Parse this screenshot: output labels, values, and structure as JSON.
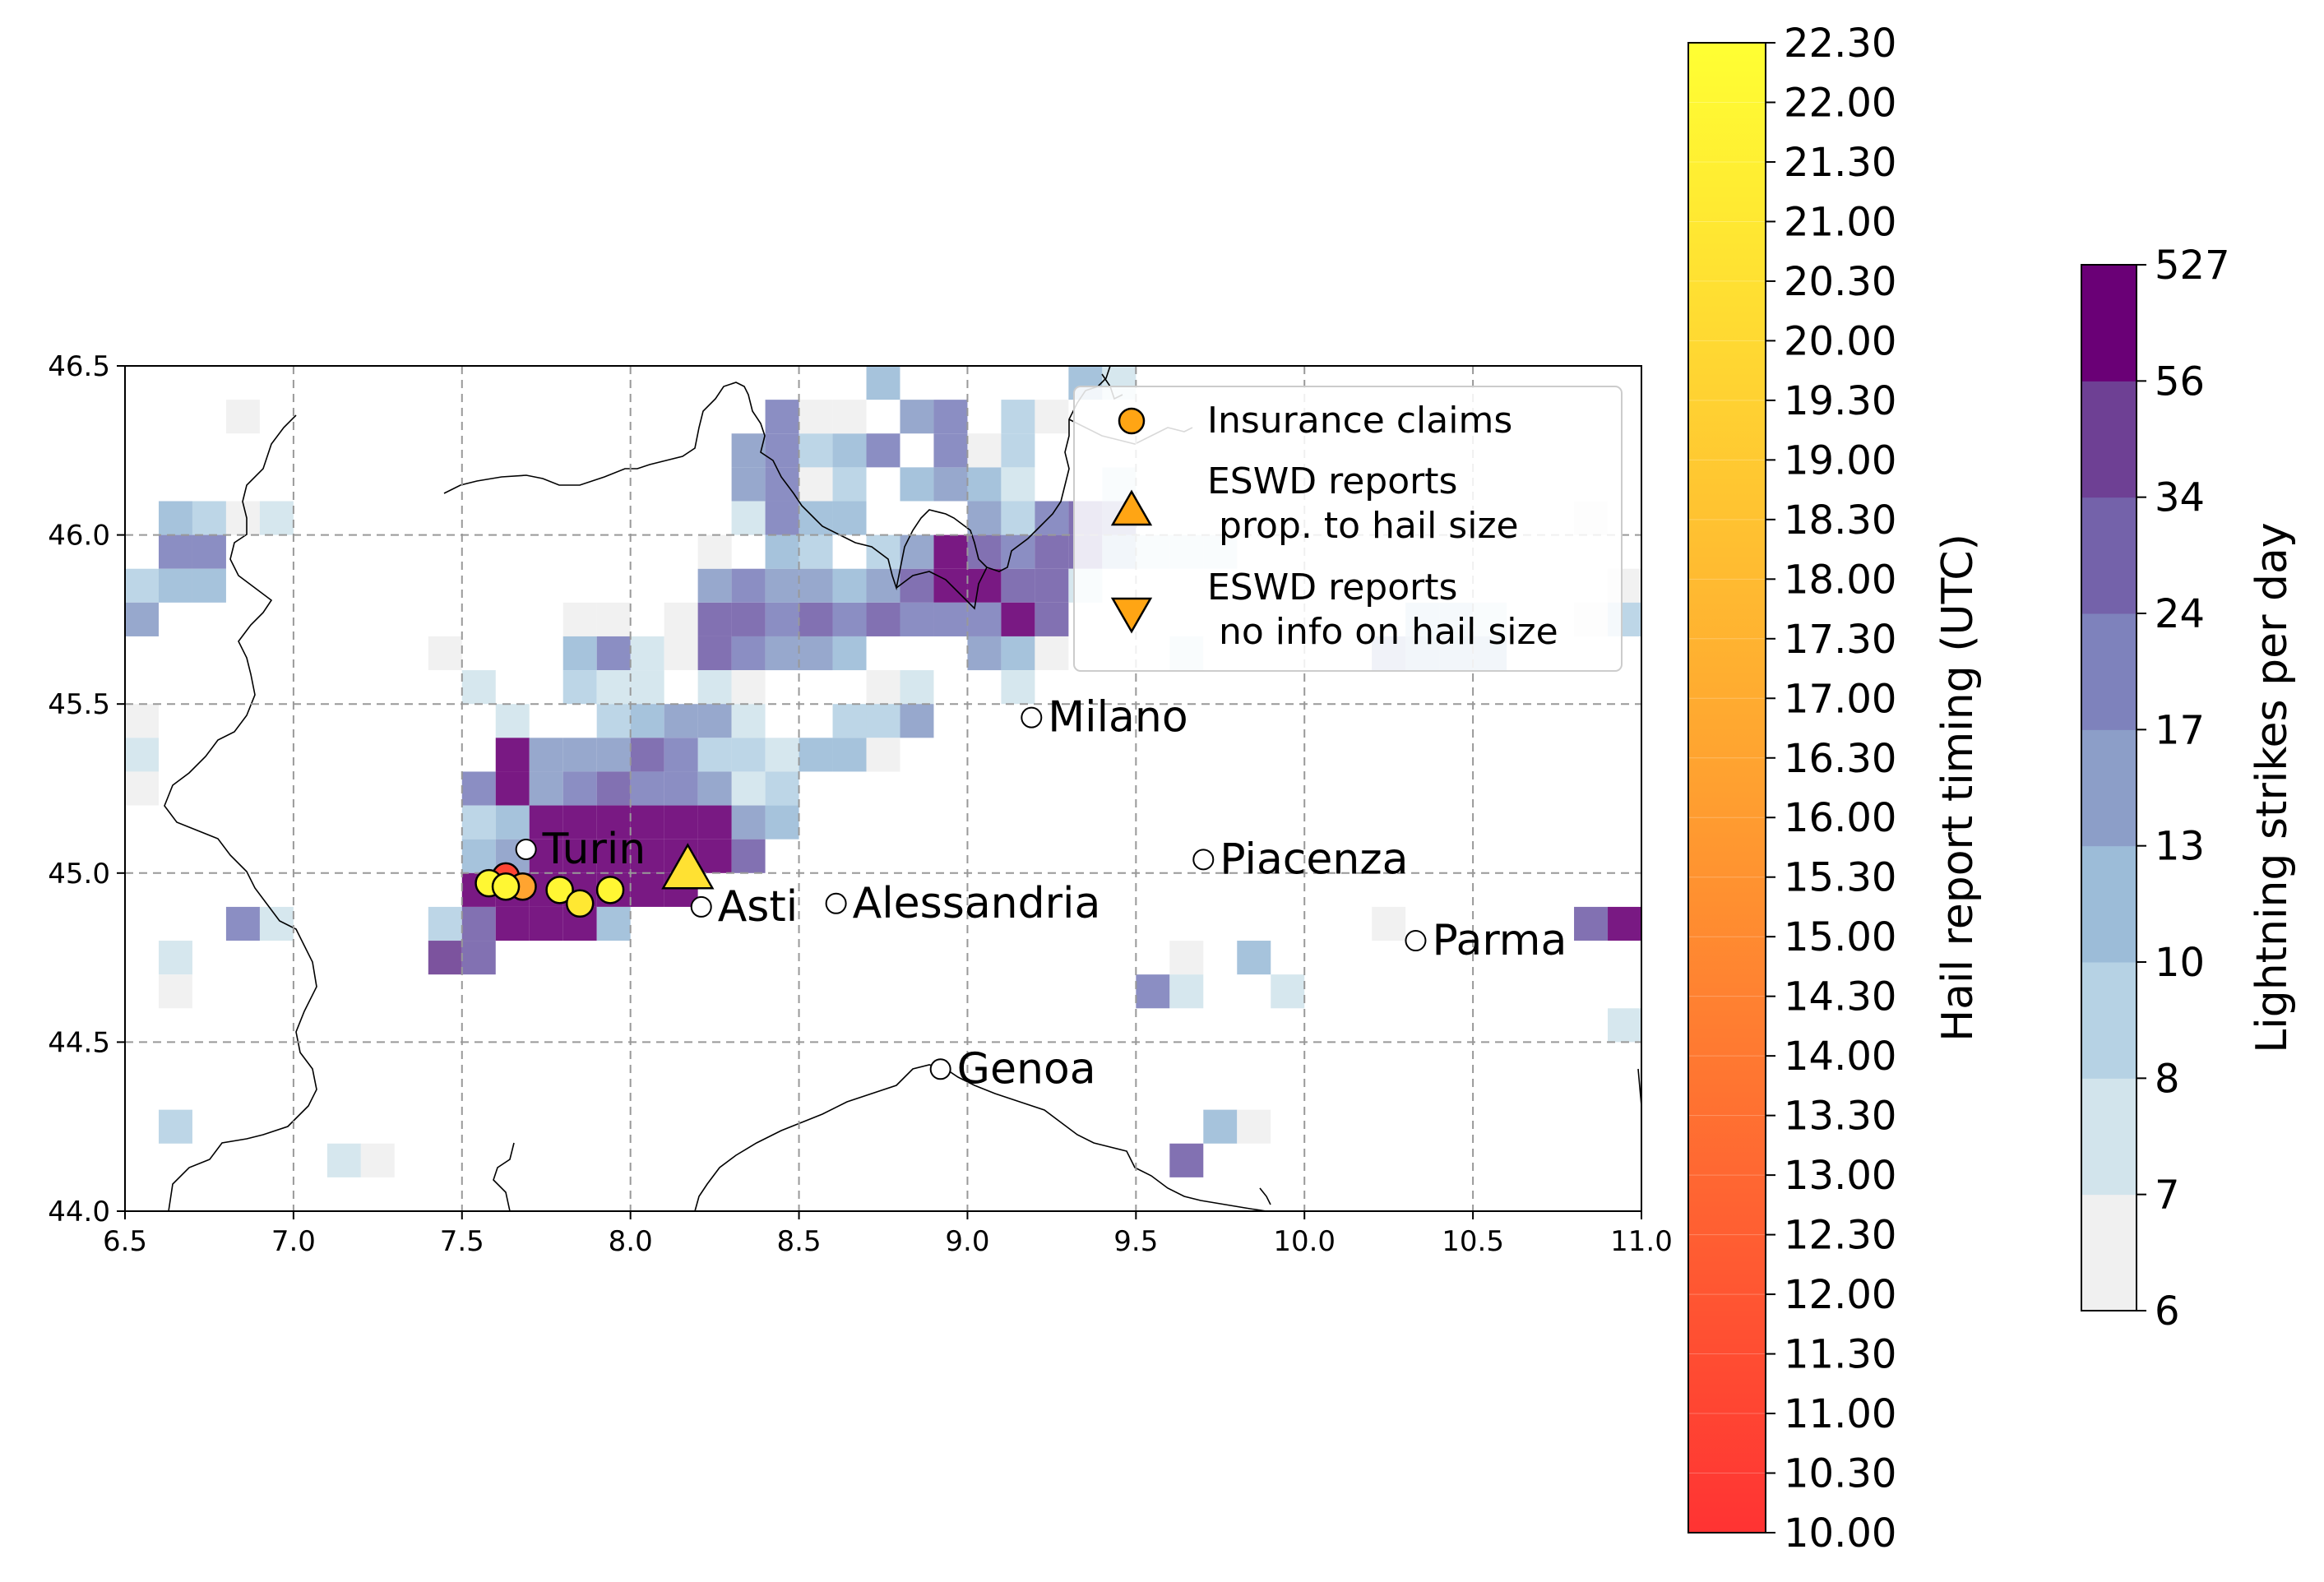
{
  "map": {
    "x_range": [
      6.5,
      11.0
    ],
    "y_range": [
      44.0,
      46.5
    ],
    "x_ticks": [
      "6.5",
      "7.0",
      "7.5",
      "8.0",
      "8.5",
      "9.0",
      "9.5",
      "10.0",
      "10.5",
      "11.0"
    ],
    "y_ticks": [
      "44.0",
      "44.5",
      "45.0",
      "45.5",
      "46.0",
      "46.5"
    ],
    "grid": true,
    "cell_size_deg": 0.1
  },
  "cities": [
    {
      "name": "Turin",
      "lon": 7.69,
      "lat": 45.07
    },
    {
      "name": "Asti",
      "lon": 8.21,
      "lat": 44.9
    },
    {
      "name": "Alessandria",
      "lon": 8.61,
      "lat": 44.91
    },
    {
      "name": "Milano",
      "lon": 9.19,
      "lat": 45.46
    },
    {
      "name": "Piacenza",
      "lon": 9.7,
      "lat": 45.04
    },
    {
      "name": "Parma",
      "lon": 10.33,
      "lat": 44.8
    },
    {
      "name": "Genoa",
      "lon": 8.92,
      "lat": 44.42
    }
  ],
  "insurance_claims": [
    {
      "lon": 7.63,
      "lat": 44.99,
      "time": 11.0
    },
    {
      "lon": 7.68,
      "lat": 44.96,
      "time": 16.3
    },
    {
      "lon": 7.58,
      "lat": 44.97,
      "time": 22.0
    },
    {
      "lon": 7.63,
      "lat": 44.96,
      "time": 22.0
    },
    {
      "lon": 7.79,
      "lat": 44.95,
      "time": 22.0
    },
    {
      "lon": 7.85,
      "lat": 44.91,
      "time": 21.0
    },
    {
      "lon": 7.94,
      "lat": 44.95,
      "time": 22.0
    }
  ],
  "eswd_reports": [
    {
      "lon": 8.17,
      "lat": 45.01,
      "time": 20.3,
      "type": "prop_to_hail_size"
    }
  ],
  "legend": {
    "placement": "top-right",
    "entries": [
      {
        "marker": "circle",
        "label": "Insurance claims"
      },
      {
        "marker": "triangle-up",
        "label": "ESWD reports\n prop. to hail size"
      },
      {
        "marker": "triangle-down",
        "label": "ESWD reports\n no info on hail size"
      }
    ],
    "marker_color": "#ffa514"
  },
  "timing_colorbar": {
    "label": "Hail report timing (UTC)",
    "ticks": [
      "10.00",
      "10.30",
      "11.00",
      "11.30",
      "12.00",
      "12.30",
      "13.00",
      "13.30",
      "14.00",
      "14.30",
      "15.00",
      "15.30",
      "16.00",
      "16.30",
      "17.00",
      "17.30",
      "18.00",
      "18.30",
      "19.00",
      "19.30",
      "20.00",
      "20.30",
      "21.00",
      "21.30",
      "22.00",
      "22.30"
    ],
    "color_low": "#ff3333",
    "color_mid": "#ffa030",
    "color_high": "#ffff33"
  },
  "lightning_colorbar": {
    "label": "Lightning strikes per day",
    "ticks": [
      "6",
      "7",
      "8",
      "10",
      "13",
      "17",
      "24",
      "34",
      "56",
      "527"
    ],
    "colors": [
      "#f0f0f0",
      "#d2e4ec",
      "#b6d2e4",
      "#9cbcd8",
      "#8c9ec8",
      "#7e82bc",
      "#7462aa",
      "#6e4094",
      "#6a0076"
    ]
  },
  "lightning_cells": [
    {
      "lon": 6.85,
      "lat": 46.35,
      "level": 0
    },
    {
      "lon": 6.65,
      "lat": 46.05,
      "level": 3
    },
    {
      "lon": 6.75,
      "lat": 46.05,
      "level": 2
    },
    {
      "lon": 6.85,
      "lat": 46.05,
      "level": 0
    },
    {
      "lon": 6.95,
      "lat": 46.05,
      "level": 1
    },
    {
      "lon": 6.65,
      "lat": 45.95,
      "level": 5
    },
    {
      "lon": 6.75,
      "lat": 45.95,
      "level": 5
    },
    {
      "lon": 6.55,
      "lat": 45.85,
      "level": 2
    },
    {
      "lon": 6.65,
      "lat": 45.85,
      "level": 3
    },
    {
      "lon": 6.75,
      "lat": 45.85,
      "level": 3
    },
    {
      "lon": 6.55,
      "lat": 45.75,
      "level": 4
    },
    {
      "lon": 6.55,
      "lat": 45.45,
      "level": 0
    },
    {
      "lon": 6.55,
      "lat": 45.35,
      "level": 1
    },
    {
      "lon": 6.55,
      "lat": 45.25,
      "level": 0
    },
    {
      "lon": 6.95,
      "lat": 44.85,
      "level": 1
    },
    {
      "lon": 6.85,
      "lat": 44.85,
      "level": 5
    },
    {
      "lon": 6.65,
      "lat": 44.75,
      "level": 1
    },
    {
      "lon": 6.65,
      "lat": 44.65,
      "level": 0
    },
    {
      "lon": 6.65,
      "lat": 44.25,
      "level": 2
    },
    {
      "lon": 7.15,
      "lat": 44.15,
      "level": 1
    },
    {
      "lon": 7.25,
      "lat": 44.15,
      "level": 0
    },
    {
      "lon": 7.45,
      "lat": 45.65,
      "level": 0
    },
    {
      "lon": 7.55,
      "lat": 45.55,
      "level": 1
    },
    {
      "lon": 7.65,
      "lat": 45.45,
      "level": 1
    },
    {
      "lon": 7.85,
      "lat": 45.75,
      "level": 0
    },
    {
      "lon": 7.95,
      "lat": 45.75,
      "level": 0
    },
    {
      "lon": 7.85,
      "lat": 45.65,
      "level": 3
    },
    {
      "lon": 7.95,
      "lat": 45.65,
      "level": 5
    },
    {
      "lon": 8.05,
      "lat": 45.65,
      "level": 1
    },
    {
      "lon": 7.85,
      "lat": 45.55,
      "level": 2
    },
    {
      "lon": 7.95,
      "lat": 45.55,
      "level": 1
    },
    {
      "lon": 8.05,
      "lat": 45.55,
      "level": 1
    },
    {
      "lon": 7.95,
      "lat": 45.45,
      "level": 2
    },
    {
      "lon": 8.05,
      "lat": 45.45,
      "level": 3
    },
    {
      "lon": 8.15,
      "lat": 45.45,
      "level": 4
    },
    {
      "lon": 8.15,
      "lat": 45.75,
      "level": 0
    },
    {
      "lon": 8.15,
      "lat": 45.65,
      "level": 0
    },
    {
      "lon": 8.25,
      "lat": 45.75,
      "level": 6
    },
    {
      "lon": 8.35,
      "lat": 45.75,
      "level": 6
    },
    {
      "lon": 8.25,
      "lat": 45.65,
      "level": 6
    },
    {
      "lon": 8.35,
      "lat": 45.65,
      "level": 5
    },
    {
      "lon": 8.25,
      "lat": 45.55,
      "level": 1
    },
    {
      "lon": 8.35,
      "lat": 45.55,
      "level": 0
    },
    {
      "lon": 8.25,
      "lat": 45.85,
      "level": 4
    },
    {
      "lon": 8.35,
      "lat": 45.85,
      "level": 5
    },
    {
      "lon": 8.45,
      "lat": 45.85,
      "level": 4
    },
    {
      "lon": 8.25,
      "lat": 45.95,
      "level": 0
    },
    {
      "lon": 8.45,
      "lat": 45.95,
      "level": 3
    },
    {
      "lon": 8.55,
      "lat": 45.95,
      "level": 2
    },
    {
      "lon": 8.35,
      "lat": 46.05,
      "level": 1
    },
    {
      "lon": 8.45,
      "lat": 46.05,
      "level": 5
    },
    {
      "lon": 8.55,
      "lat": 46.05,
      "level": 3
    },
    {
      "lon": 8.65,
      "lat": 46.05,
      "level": 3
    },
    {
      "lon": 8.35,
      "lat": 46.15,
      "level": 4
    },
    {
      "lon": 8.45,
      "lat": 46.15,
      "level": 5
    },
    {
      "lon": 8.55,
      "lat": 46.15,
      "level": 0
    },
    {
      "lon": 8.65,
      "lat": 46.15,
      "level": 2
    },
    {
      "lon": 8.35,
      "lat": 46.25,
      "level": 4
    },
    {
      "lon": 8.45,
      "lat": 46.25,
      "level": 5
    },
    {
      "lon": 8.55,
      "lat": 46.25,
      "level": 2
    },
    {
      "lon": 8.65,
      "lat": 46.25,
      "level": 3
    },
    {
      "lon": 8.45,
      "lat": 46.35,
      "level": 5
    },
    {
      "lon": 8.55,
      "lat": 46.35,
      "level": 0
    },
    {
      "lon": 8.65,
      "lat": 46.35,
      "level": 0
    },
    {
      "lon": 8.75,
      "lat": 46.45,
      "level": 3
    },
    {
      "lon": 8.85,
      "lat": 46.35,
      "level": 4
    },
    {
      "lon": 8.95,
      "lat": 46.35,
      "level": 5
    },
    {
      "lon": 8.75,
      "lat": 46.25,
      "level": 5
    },
    {
      "lon": 8.85,
      "lat": 46.15,
      "level": 3
    },
    {
      "lon": 8.95,
      "lat": 46.15,
      "level": 4
    },
    {
      "lon": 9.05,
      "lat": 46.15,
      "level": 3
    },
    {
      "lon": 9.15,
      "lat": 46.15,
      "level": 1
    },
    {
      "lon": 8.95,
      "lat": 46.25,
      "level": 5
    },
    {
      "lon": 9.05,
      "lat": 46.25,
      "level": 0
    },
    {
      "lon": 9.15,
      "lat": 46.25,
      "level": 2
    },
    {
      "lon": 8.55,
      "lat": 45.75,
      "level": 6
    },
    {
      "lon": 8.65,
      "lat": 45.75,
      "level": 5
    },
    {
      "lon": 8.75,
      "lat": 45.75,
      "level": 6
    },
    {
      "lon": 8.85,
      "lat": 45.75,
      "level": 5
    },
    {
      "lon": 8.55,
      "lat": 45.85,
      "level": 4
    },
    {
      "lon": 8.65,
      "lat": 45.85,
      "level": 3
    },
    {
      "lon": 8.75,
      "lat": 45.85,
      "level": 4
    },
    {
      "lon": 8.85,
      "lat": 45.85,
      "level": 6
    },
    {
      "lon": 8.45,
      "lat": 45.75,
      "level": 5
    },
    {
      "lon": 8.95,
      "lat": 45.85,
      "level": 8
    },
    {
      "lon": 9.05,
      "lat": 45.85,
      "level": 8
    },
    {
      "lon": 9.15,
      "lat": 45.85,
      "level": 6
    },
    {
      "lon": 9.25,
      "lat": 45.85,
      "level": 6
    },
    {
      "lon": 8.95,
      "lat": 45.75,
      "level": 5
    },
    {
      "lon": 9.05,
      "lat": 45.75,
      "level": 5
    },
    {
      "lon": 9.15,
      "lat": 45.75,
      "level": 8
    },
    {
      "lon": 9.25,
      "lat": 45.75,
      "level": 6
    },
    {
      "lon": 8.95,
      "lat": 45.95,
      "level": 8
    },
    {
      "lon": 9.05,
      "lat": 45.95,
      "level": 6
    },
    {
      "lon": 9.15,
      "lat": 45.95,
      "level": 5
    },
    {
      "lon": 9.25,
      "lat": 45.95,
      "level": 6
    },
    {
      "lon": 9.05,
      "lat": 46.05,
      "level": 4
    },
    {
      "lon": 9.15,
      "lat": 46.05,
      "level": 2
    },
    {
      "lon": 9.25,
      "lat": 46.05,
      "level": 5
    },
    {
      "lon": 9.35,
      "lat": 46.05,
      "level": 6
    },
    {
      "lon": 8.85,
      "lat": 45.95,
      "level": 4
    },
    {
      "lon": 8.75,
      "lat": 45.95,
      "level": 2
    },
    {
      "lon": 9.15,
      "lat": 45.65,
      "level": 3
    },
    {
      "lon": 9.05,
      "lat": 45.65,
      "level": 4
    },
    {
      "lon": 9.25,
      "lat": 45.65,
      "level": 0
    },
    {
      "lon": 8.85,
      "lat": 45.55,
      "level": 1
    },
    {
      "lon": 8.75,
      "lat": 45.55,
      "level": 0
    },
    {
      "lon": 8.55,
      "lat": 45.65,
      "level": 4
    },
    {
      "lon": 8.65,
      "lat": 45.65,
      "level": 3
    },
    {
      "lon": 8.45,
      "lat": 45.65,
      "level": 4
    },
    {
      "lon": 9.35,
      "lat": 45.95,
      "level": 6
    },
    {
      "lon": 9.35,
      "lat": 45.85,
      "level": 1
    },
    {
      "lon": 9.35,
      "lat": 46.45,
      "level": 3
    },
    {
      "lon": 9.45,
      "lat": 46.45,
      "level": 1
    },
    {
      "lon": 9.15,
      "lat": 46.35,
      "level": 2
    },
    {
      "lon": 9.25,
      "lat": 46.35,
      "level": 0
    },
    {
      "lon": 9.45,
      "lat": 46.05,
      "level": 5
    },
    {
      "lon": 9.45,
      "lat": 45.95,
      "level": 3
    },
    {
      "lon": 8.85,
      "lat": 45.45,
      "level": 4
    },
    {
      "lon": 8.75,
      "lat": 45.45,
      "level": 2
    },
    {
      "lon": 8.65,
      "lat": 45.45,
      "level": 2
    },
    {
      "lon": 8.55,
      "lat": 45.35,
      "level": 3
    },
    {
      "lon": 8.65,
      "lat": 45.35,
      "level": 3
    },
    {
      "lon": 8.75,
      "lat": 45.35,
      "level": 0
    },
    {
      "lon": 8.25,
      "lat": 45.45,
      "level": 4
    },
    {
      "lon": 8.35,
      "lat": 45.45,
      "level": 1
    },
    {
      "lon": 8.25,
      "lat": 45.35,
      "level": 2
    },
    {
      "lon": 8.35,
      "lat": 45.35,
      "level": 2
    },
    {
      "lon": 8.45,
      "lat": 45.35,
      "level": 1
    },
    {
      "lon": 8.35,
      "lat": 45.25,
      "level": 1
    },
    {
      "lon": 8.45,
      "lat": 45.25,
      "level": 2
    },
    {
      "lon": 8.45,
      "lat": 45.15,
      "level": 3
    },
    {
      "lon": 8.35,
      "lat": 45.15,
      "level": 4
    },
    {
      "lon": 7.65,
      "lat": 45.35,
      "level": 8
    },
    {
      "lon": 7.75,
      "lat": 45.35,
      "level": 4
    },
    {
      "lon": 7.85,
      "lat": 45.35,
      "level": 4
    },
    {
      "lon": 7.95,
      "lat": 45.35,
      "level": 4
    },
    {
      "lon": 8.05,
      "lat": 45.35,
      "level": 6
    },
    {
      "lon": 8.15,
      "lat": 45.35,
      "level": 5
    },
    {
      "lon": 7.55,
      "lat": 45.25,
      "level": 5
    },
    {
      "lon": 7.65,
      "lat": 45.25,
      "level": 8
    },
    {
      "lon": 7.75,
      "lat": 45.25,
      "level": 4
    },
    {
      "lon": 7.85,
      "lat": 45.25,
      "level": 5
    },
    {
      "lon": 7.95,
      "lat": 45.25,
      "level": 6
    },
    {
      "lon": 8.05,
      "lat": 45.25,
      "level": 5
    },
    {
      "lon": 8.15,
      "lat": 45.25,
      "level": 5
    },
    {
      "lon": 8.25,
      "lat": 45.25,
      "level": 4
    },
    {
      "lon": 7.55,
      "lat": 45.15,
      "level": 2
    },
    {
      "lon": 7.65,
      "lat": 45.15,
      "level": 3
    },
    {
      "lon": 7.75,
      "lat": 45.15,
      "level": 8
    },
    {
      "lon": 7.85,
      "lat": 45.15,
      "level": 8
    },
    {
      "lon": 7.95,
      "lat": 45.15,
      "level": 8
    },
    {
      "lon": 8.05,
      "lat": 45.15,
      "level": 8
    },
    {
      "lon": 8.15,
      "lat": 45.15,
      "level": 8
    },
    {
      "lon": 8.25,
      "lat": 45.15,
      "level": 8
    },
    {
      "lon": 7.55,
      "lat": 45.05,
      "level": 3
    },
    {
      "lon": 7.65,
      "lat": 45.05,
      "level": 4
    },
    {
      "lon": 7.75,
      "lat": 45.05,
      "level": 8
    },
    {
      "lon": 7.85,
      "lat": 45.05,
      "level": 8
    },
    {
      "lon": 7.95,
      "lat": 45.05,
      "level": 8
    },
    {
      "lon": 8.05,
      "lat": 45.05,
      "level": 8
    },
    {
      "lon": 8.15,
      "lat": 45.05,
      "level": 8
    },
    {
      "lon": 8.25,
      "lat": 45.05,
      "level": 8
    },
    {
      "lon": 8.35,
      "lat": 45.05,
      "level": 6
    },
    {
      "lon": 7.55,
      "lat": 44.95,
      "level": 8
    },
    {
      "lon": 7.65,
      "lat": 44.95,
      "level": 8
    },
    {
      "lon": 7.75,
      "lat": 44.95,
      "level": 8
    },
    {
      "lon": 7.85,
      "lat": 44.95,
      "level": 8
    },
    {
      "lon": 7.95,
      "lat": 44.95,
      "level": 8
    },
    {
      "lon": 8.05,
      "lat": 44.95,
      "level": 8
    },
    {
      "lon": 8.15,
      "lat": 44.95,
      "level": 8
    },
    {
      "lon": 7.45,
      "lat": 44.85,
      "level": 2
    },
    {
      "lon": 7.55,
      "lat": 44.85,
      "level": 6
    },
    {
      "lon": 7.65,
      "lat": 44.85,
      "level": 8
    },
    {
      "lon": 7.75,
      "lat": 44.85,
      "level": 8
    },
    {
      "lon": 7.85,
      "lat": 44.85,
      "level": 8
    },
    {
      "lon": 7.95,
      "lat": 44.85,
      "level": 3
    },
    {
      "lon": 7.45,
      "lat": 44.75,
      "level": 7
    },
    {
      "lon": 7.55,
      "lat": 44.75,
      "level": 6
    },
    {
      "lon": 9.65,
      "lat": 44.75,
      "level": 0
    },
    {
      "lon": 9.85,
      "lat": 44.75,
      "level": 3
    },
    {
      "lon": 9.55,
      "lat": 44.65,
      "level": 5
    },
    {
      "lon": 9.65,
      "lat": 44.65,
      "level": 1
    },
    {
      "lon": 9.95,
      "lat": 44.65,
      "level": 1
    },
    {
      "lon": 9.75,
      "lat": 44.25,
      "level": 3
    },
    {
      "lon": 9.85,
      "lat": 44.25,
      "level": 0
    },
    {
      "lon": 9.65,
      "lat": 44.15,
      "level": 6
    },
    {
      "lon": 10.25,
      "lat": 44.85,
      "level": 0
    },
    {
      "lon": 10.85,
      "lat": 44.85,
      "level": 6
    },
    {
      "lon": 10.95,
      "lat": 44.85,
      "level": 8
    },
    {
      "lon": 10.95,
      "lat": 44.55,
      "level": 1
    },
    {
      "lon": 10.95,
      "lat": 45.85,
      "level": 0
    },
    {
      "lon": 10.95,
      "lat": 45.75,
      "level": 2
    },
    {
      "lon": 10.85,
      "lat": 45.75,
      "level": 0
    },
    {
      "lon": 10.85,
      "lat": 46.05,
      "level": 0
    },
    {
      "lon": 9.55,
      "lat": 45.95,
      "level": 1
    },
    {
      "lon": 9.65,
      "lat": 45.95,
      "level": 1
    },
    {
      "lon": 9.75,
      "lat": 45.95,
      "level": 1
    },
    {
      "lon": 10.25,
      "lat": 45.65,
      "level": 4
    },
    {
      "lon": 10.35,
      "lat": 45.65,
      "level": 3
    },
    {
      "lon": 10.45,
      "lat": 45.65,
      "level": 3
    },
    {
      "lon": 10.55,
      "lat": 45.65,
      "level": 3
    },
    {
      "lon": 10.35,
      "lat": 45.75,
      "level": 2
    },
    {
      "lon": 10.45,
      "lat": 45.75,
      "level": 2
    },
    {
      "lon": 10.55,
      "lat": 45.75,
      "level": 1
    },
    {
      "lon": 9.15,
      "lat": 45.55,
      "level": 1
    },
    {
      "lon": 9.65,
      "lat": 45.65,
      "level": 1
    },
    {
      "lon": 9.45,
      "lat": 46.15,
      "level": 1
    }
  ]
}
